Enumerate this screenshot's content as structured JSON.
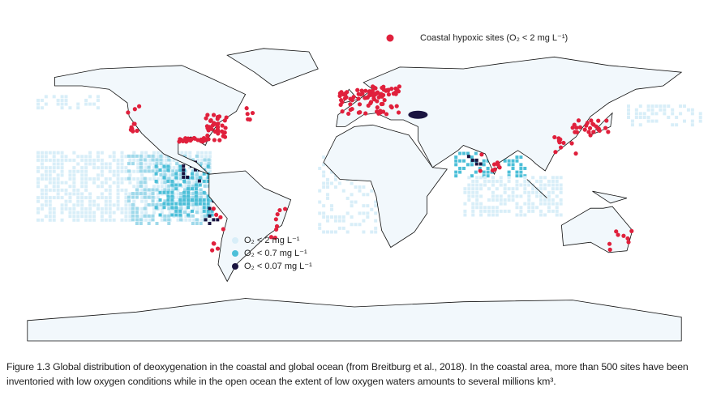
{
  "legend": {
    "coastal": "Coastal hypoxic sites (O₂ < 2 mg L⁻¹)",
    "items": [
      "O₂ < 2 mg L⁻¹",
      "O₂ < 0.7 mg L⁻¹",
      "O₂ < 0.07 mg L⁻¹"
    ]
  },
  "caption": "Figure 1.3  Global distribution of deoxygenation in the coastal and global ocean (from Breitburg et al., 2018). In the coastal area, more than 500 sites have been inventoried with low oxygen conditions while in the open ocean the extent of low oxygen waters amounts to several millions km³."
}
